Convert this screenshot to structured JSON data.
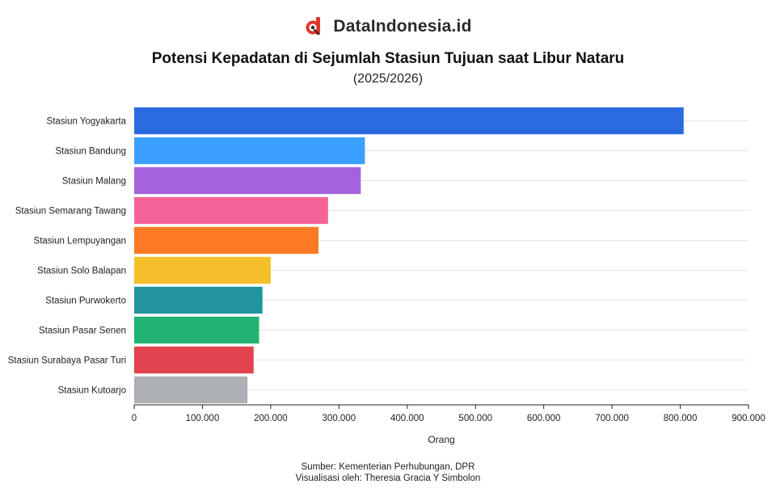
{
  "brand": {
    "name": "DataIndonesia.id",
    "logo_icon": "dataindonesia-logo-icon",
    "logo_color": "#e0362c"
  },
  "chart_data": {
    "type": "bar",
    "orientation": "horizontal",
    "title": "Potensi Kepadatan di Sejumlah Stasiun Tujuan saat Libur Nataru",
    "subtitle": "(2025/2026)",
    "xlabel": "Orang",
    "ylabel": "",
    "xlim": [
      0,
      900000
    ],
    "grid": true,
    "x_ticks": [
      0,
      100000,
      200000,
      300000,
      400000,
      500000,
      600000,
      700000,
      800000,
      900000
    ],
    "x_tick_labels": [
      "0",
      "100.000",
      "200.000",
      "300.000",
      "400.000",
      "500.000",
      "600.000",
      "700.000",
      "800.000",
      "900.000"
    ],
    "categories": [
      "Stasiun Yogyakarta",
      "Stasiun Bandung",
      "Stasiun Malang",
      "Stasiun Semarang Tawang",
      "Stasiun Lempuyangan",
      "Stasiun Solo Balapan",
      "Stasiun Purwokerto",
      "Stasiun Pasar Senen",
      "Stasiun Surabaya Pasar Turi",
      "Stasiun Kutoarjo"
    ],
    "values": [
      805000,
      338000,
      332000,
      284000,
      270000,
      200000,
      188000,
      183000,
      175000,
      166000
    ],
    "colors": [
      "#2b6be0",
      "#3aa0ff",
      "#a463dc",
      "#f46499",
      "#fb7a23",
      "#f4bf2a",
      "#2196a0",
      "#22b373",
      "#e1444f",
      "#adb0b5"
    ]
  },
  "footer": {
    "source": "Sumber: Kementerian Perhubungan, DPR",
    "visualization": "Visualisasi oleh: Theresia Gracia Y Simbolon"
  }
}
